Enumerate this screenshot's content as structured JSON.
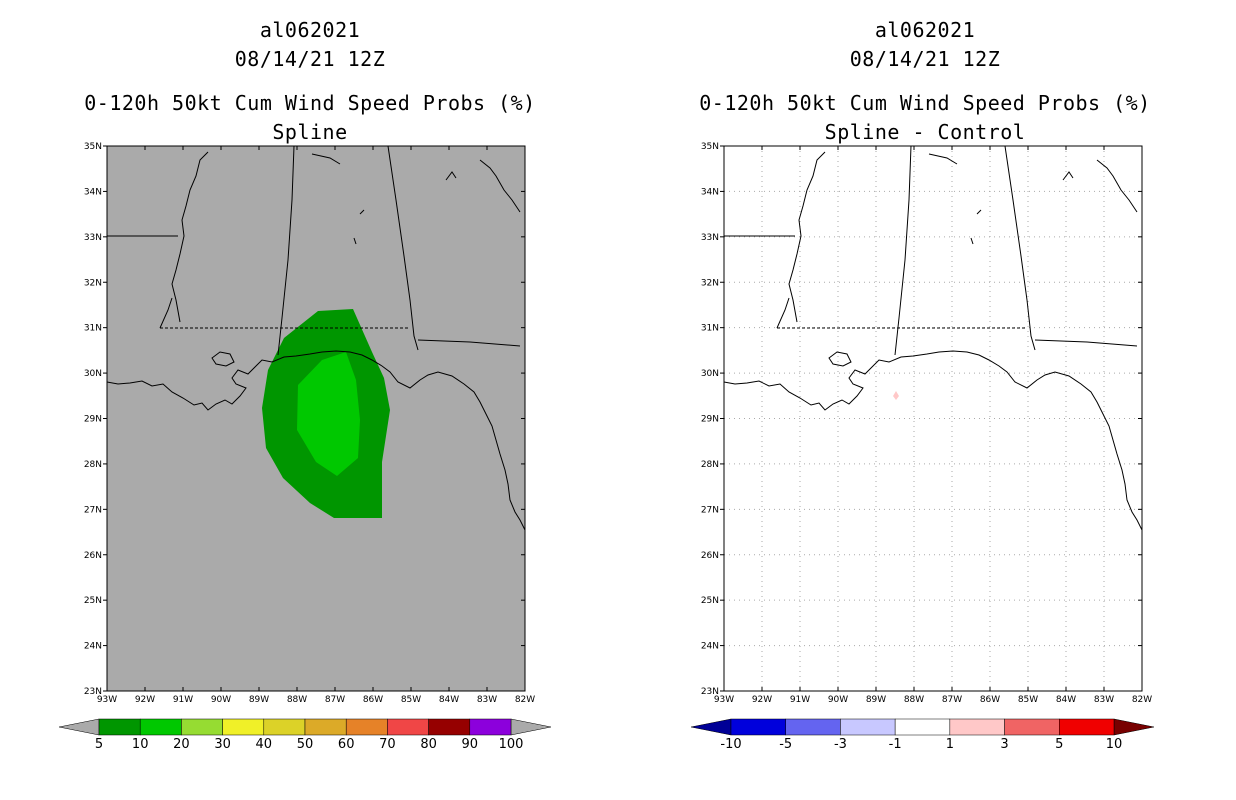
{
  "left_panel": {
    "storm_id": "al062021",
    "datetime": "08/14/21 12Z",
    "title": "0-120h 50kt Cum Wind Speed Probs (%)",
    "subtitle": "Spline"
  },
  "right_panel": {
    "storm_id": "al062021",
    "datetime": "08/14/21 12Z",
    "title": "0-120h 50kt Cum Wind Speed Probs (%)",
    "subtitle": "Spline - Control"
  },
  "map": {
    "lat_labels": [
      "35N",
      "34N",
      "33N",
      "32N",
      "31N",
      "30N",
      "29N",
      "28N",
      "27N",
      "26N",
      "25N",
      "24N",
      "23N"
    ],
    "lon_labels": [
      "93W",
      "92W",
      "91W",
      "90W",
      "89W",
      "88W",
      "87W",
      "86W",
      "85W",
      "84W",
      "83W",
      "82W"
    ]
  },
  "colors": {
    "land_gray": "#aaaaaa",
    "prob_5_10": "#009600",
    "prob_10_20": "#00c800",
    "neg_light": "#c8c8ff",
    "pos_light": "#ffc8c8"
  },
  "left_colorbar": {
    "labels": [
      "5",
      "10",
      "20",
      "30",
      "40",
      "50",
      "60",
      "70",
      "80",
      "90",
      "100"
    ],
    "colors": [
      "#009600",
      "#00c800",
      "#96dc32",
      "#f0f028",
      "#dcd228",
      "#dcaa28",
      "#e68228",
      "#f04646",
      "#960000",
      "#8c00dc"
    ]
  },
  "right_colorbar": {
    "labels": [
      "-10",
      "-5",
      "-3",
      "-1",
      "1",
      "3",
      "5",
      "10"
    ],
    "colors": [
      "#0000dc",
      "#6464f0",
      "#c8c8ff",
      "#ffffff",
      "#ffc8c8",
      "#f06464",
      "#f00000"
    ]
  }
}
